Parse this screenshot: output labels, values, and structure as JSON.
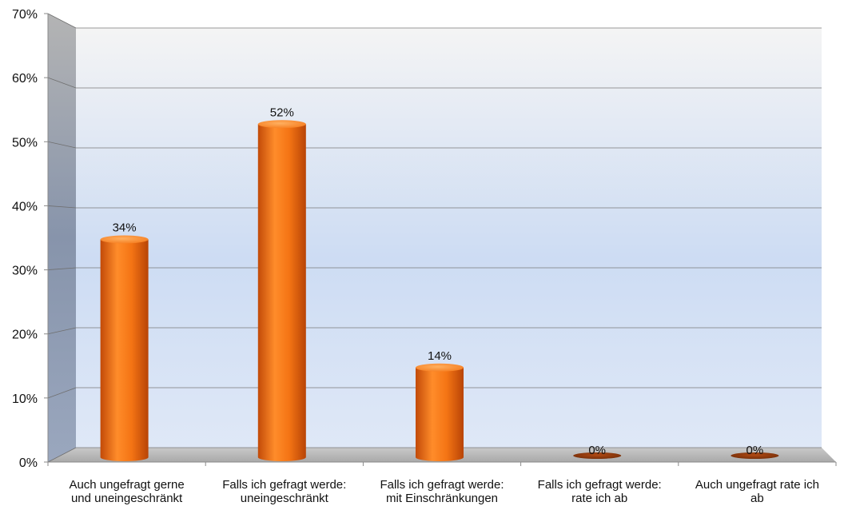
{
  "chart_data": {
    "type": "bar",
    "categories": [
      [
        "Auch ungefragt gerne",
        "und uneingeschränkt"
      ],
      [
        "Falls ich gefragt werde:",
        "uneingeschränkt"
      ],
      [
        "Falls ich gefragt werde:",
        "mit Einschränkungen"
      ],
      [
        "Falls ich gefragt werde:",
        "rate ich ab"
      ],
      [
        "Auch ungefragt rate ich",
        "ab"
      ]
    ],
    "values": [
      34,
      52,
      14,
      0,
      0
    ],
    "data_labels": [
      "34%",
      "52%",
      "14%",
      "0%",
      "0%"
    ],
    "ylim": [
      0,
      70
    ],
    "y_ticks": [
      0,
      10,
      20,
      30,
      40,
      50,
      60,
      70
    ],
    "y_tick_labels": [
      "0%",
      "10%",
      "20%",
      "30%",
      "40%",
      "50%",
      "60%",
      "70%"
    ],
    "grid": true,
    "style": "3d-cylinder",
    "colors": {
      "bar_light": "#ff8c2a",
      "bar_mid": "#f36a12",
      "bar_dark": "#c24a08",
      "wall_top": "#f2f2f2",
      "wall_mid": "#c7d8f2",
      "side_wall": "#8c97aa"
    }
  }
}
